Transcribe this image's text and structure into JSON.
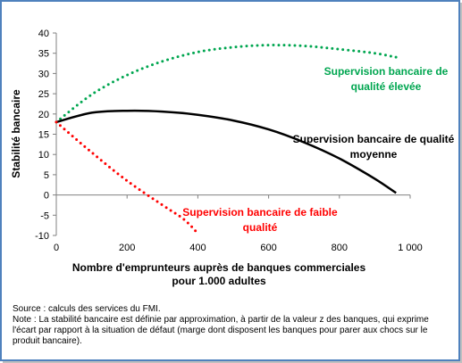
{
  "chart_data": {
    "type": "line",
    "ylabel": "Stabilité bancaire",
    "xlabel_line1": "Nombre d'emprunteurs auprès de banques commerciales",
    "xlabel_line2": "pour 1.000 adultes",
    "xlim": [
      0,
      1000
    ],
    "ylim": [
      -10,
      40
    ],
    "x_ticks": [
      0,
      200,
      400,
      600,
      800,
      1000
    ],
    "x_tick_labels": [
      "0",
      "200",
      "400",
      "600",
      "800",
      "1 000"
    ],
    "y_ticks": [
      -10,
      -5,
      0,
      5,
      10,
      15,
      20,
      25,
      30,
      35,
      40
    ],
    "y_tick_labels": [
      "-10",
      "-5",
      "0",
      "5",
      "10",
      "15",
      "20",
      "25",
      "30",
      "35",
      "40"
    ],
    "grid": false,
    "series": [
      {
        "name": "Supervision bancaire de qualité élevée",
        "label_lines": [
          "Supervision bancaire de",
          "qualité élevée"
        ],
        "color": "#00a650",
        "style": "dotted",
        "x": [
          0,
          100,
          200,
          300,
          400,
          500,
          600,
          700,
          800,
          900,
          960
        ],
        "y": [
          18,
          24.8,
          29.6,
          33,
          35.3,
          36.5,
          37,
          36.8,
          36,
          35,
          34
        ]
      },
      {
        "name": "Supervision bancaire de qualité moyenne",
        "label_lines": [
          "Supervision bancaire de qualité",
          "moyenne"
        ],
        "color": "#000000",
        "style": "solid",
        "x": [
          0,
          100,
          200,
          300,
          400,
          500,
          600,
          700,
          800,
          900,
          960
        ],
        "y": [
          18,
          20.3,
          20.8,
          20.6,
          19.8,
          18.4,
          16.2,
          13,
          9,
          4,
          0.5
        ]
      },
      {
        "name": "Supervision bancaire de faible qualité",
        "label_lines": [
          "Supervision bancaire de faible",
          "qualité"
        ],
        "color": "#ff0000",
        "style": "dotted",
        "x": [
          0,
          100,
          200,
          300,
          360,
          400
        ],
        "y": [
          18,
          10.5,
          3.5,
          -2.5,
          -6,
          -9.5
        ]
      }
    ]
  },
  "notes": {
    "source": "Source : calculs des services du FMI.",
    "note": "Note : La stabilité bancaire est définie par approximation, à partir de la valeur z des banques, qui exprime l'écart par rapport à la situation de défaut (marge dont disposent les banques pour parer aux chocs sur le produit bancaire)."
  }
}
